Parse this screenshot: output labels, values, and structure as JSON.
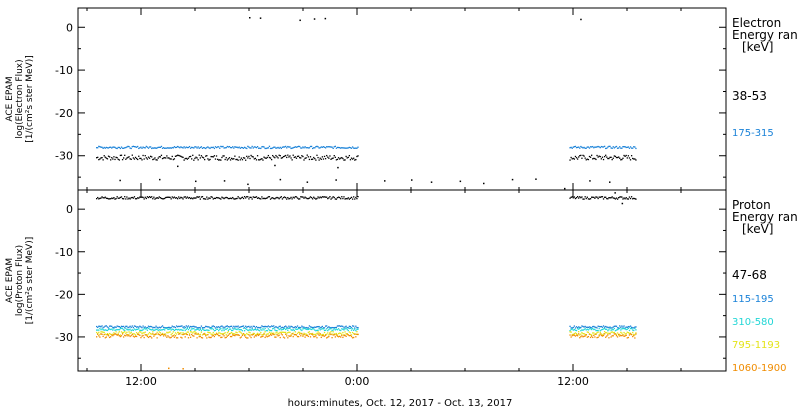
{
  "chart_data": [
    {
      "type": "scatter",
      "panel": "electron",
      "ylabel": [
        "ACE EPAM",
        "log(Electron Flux)",
        "[1/(cm²s ster MeV)]"
      ],
      "yticks": [
        0,
        -10,
        -20,
        -30
      ],
      "ylim": [
        -38,
        4.5
      ],
      "legend_title": [
        "Electron",
        "Energy ran",
        "[keV]"
      ],
      "series": [
        {
          "name": "38-53",
          "color": "#000000",
          "base": -30.3,
          "spread": 1.2,
          "segments": [
            [
              -14.5,
              0.05
            ],
            [
              11.8,
              15.5
            ]
          ],
          "outliers": [
            [
              -13.2,
              -35.6
            ],
            [
              -11.0,
              -35.4
            ],
            [
              -9.0,
              -35.8
            ],
            [
              -7.4,
              -35.7
            ],
            [
              -6.1,
              -36.5
            ],
            [
              -4.3,
              -35.4
            ],
            [
              -2.8,
              -36.0
            ],
            [
              -1.2,
              -35.5
            ],
            [
              1.5,
              -35.7
            ],
            [
              3.0,
              -35.5
            ],
            [
              4.1,
              -36.0
            ],
            [
              5.7,
              -35.8
            ],
            [
              7.0,
              -36.3
            ],
            [
              8.6,
              -35.4
            ],
            [
              9.9,
              -35.3
            ],
            [
              -10.0,
              -32.3
            ],
            [
              -4.6,
              -32.1
            ],
            [
              -1.1,
              -32.6
            ],
            [
              12.9,
              -35.7
            ],
            [
              14.0,
              -36.0
            ],
            [
              11.5,
              -37.5
            ]
          ]
        },
        {
          "name": "175-315",
          "color": "#1a82d8",
          "base": -27.9,
          "spread": 0.5,
          "segments": [
            [
              -14.5,
              0.05
            ],
            [
              11.8,
              15.5
            ]
          ],
          "outliers": []
        }
      ],
      "extra_points": [
        [
          -6.0,
          2.4
        ],
        [
          -5.4,
          2.3
        ],
        [
          -3.2,
          1.8
        ],
        [
          -2.4,
          2.1
        ],
        [
          -1.8,
          2.2
        ],
        [
          12.4,
          2.0
        ]
      ]
    },
    {
      "type": "scatter",
      "panel": "proton",
      "ylabel": [
        "ACE EPAM",
        "log(Proton Flux)",
        "[1/(cm²s ster MeV)]"
      ],
      "yticks": [
        0,
        -10,
        -20,
        -30
      ],
      "ylim": [
        -38,
        4.5
      ],
      "legend_title": [
        "Proton",
        "Energy ran",
        "[keV]"
      ],
      "series": [
        {
          "name": "47-68",
          "color": "#000000",
          "base": 2.8,
          "spread": 0.6,
          "segments": [
            [
              -14.5,
              0.05
            ],
            [
              11.8,
              15.5
            ]
          ],
          "outliers": [
            [
              14.3,
              4.0
            ],
            [
              14.7,
              1.5
            ]
          ]
        },
        {
          "name": "115-195",
          "color": "#1a82d8",
          "base": -27.5,
          "spread": 0.5,
          "segments": [
            [
              -14.5,
              0.05
            ],
            [
              11.8,
              15.5
            ]
          ],
          "outliers": []
        },
        {
          "name": "310-580",
          "color": "#22d6d6",
          "base": -28.1,
          "spread": 0.6,
          "segments": [
            [
              -14.5,
              0.05
            ],
            [
              11.8,
              15.5
            ]
          ],
          "outliers": []
        },
        {
          "name": "795-1193",
          "color": "#e4e418",
          "base": -29.0,
          "spread": 0.8,
          "segments": [
            [
              -14.5,
              0.05
            ],
            [
              11.8,
              15.5
            ]
          ],
          "outliers": []
        },
        {
          "name": "1060-1900",
          "color": "#f08c00",
          "base": -29.6,
          "spread": 1.0,
          "segments": [
            [
              -14.5,
              0.05
            ],
            [
              11.8,
              15.5
            ]
          ],
          "outliers": [
            [
              -10.5,
              -37.2
            ],
            [
              -9.7,
              -37.3
            ]
          ]
        }
      ],
      "extra_points": []
    }
  ],
  "xaxis": {
    "xlim": [
      -15.5,
      20.5
    ],
    "ticks": [
      {
        "value": -12,
        "label": "12:00"
      },
      {
        "value": 0,
        "label": "0:00"
      },
      {
        "value": 12,
        "label": "12:00"
      }
    ],
    "label": "hours:minutes, Oct. 12, 2017 - Oct. 13, 2017"
  }
}
